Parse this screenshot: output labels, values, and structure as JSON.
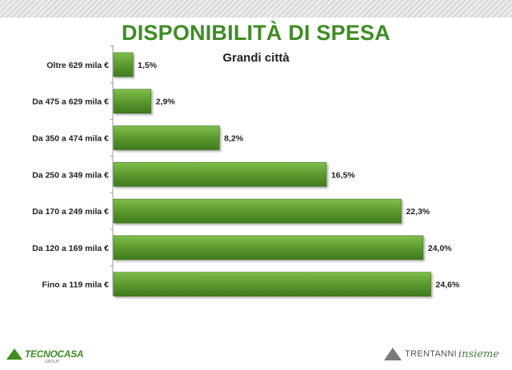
{
  "chart_data": {
    "type": "bar",
    "orientation": "horizontal",
    "title": "DISPONIBILITÀ DI SPESA",
    "subtitle": "Grandi città",
    "categories": [
      "Oltre 629 mila €",
      "Da 475 a 629 mila €",
      "Da 350 a 474 mila €",
      "Da 250 a 349 mila €",
      "Da 170 a 249 mila €",
      "Da 120 a 169 mila €",
      "Fino a 119 mila €"
    ],
    "values": [
      1.5,
      2.9,
      8.2,
      16.5,
      22.3,
      24.0,
      24.6
    ],
    "value_labels": [
      "1,5%",
      "2,9%",
      "8,2%",
      "16,5%",
      "22,3%",
      "24,0%",
      "24,6%"
    ],
    "unit": "%",
    "xlim": [
      0,
      25
    ],
    "grid": false,
    "legend": "none",
    "bar_color": "#5b9a2f",
    "title_color": "#3f8c25"
  },
  "footer": {
    "left_logo": "TECNOCASA",
    "left_logo_sub": "GROUP",
    "right_logo_main": "TRENTANNI",
    "right_logo_script": "insieme"
  }
}
